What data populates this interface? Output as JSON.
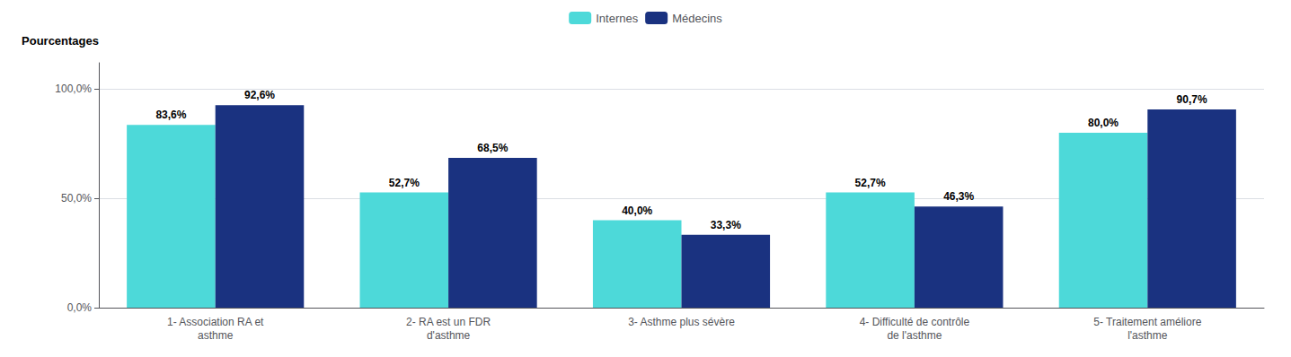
{
  "chart_data": {
    "type": "bar",
    "ylabel": "Pourcentages",
    "categories": [
      "1- Association RA et\nasthme",
      "2- RA est un FDR\nd'asthme",
      "3- Asthme plus sévère",
      "4- Difficulté de contrôle\nde l'asthme",
      "5- Traitement améliore\nl'asthme"
    ],
    "series": [
      {
        "name": "Internes",
        "color": "#4DD9D9",
        "values": [
          83.6,
          52.7,
          40.0,
          52.7,
          80.0
        ],
        "value_labels": [
          "83,6%",
          "52,7%",
          "40,0%",
          "52,7%",
          "80,0%"
        ]
      },
      {
        "name": "Médecins",
        "color": "#1A3280",
        "values": [
          92.6,
          68.5,
          33.3,
          46.3,
          90.7
        ],
        "value_labels": [
          "92,6%",
          "68,5%",
          "33,3%",
          "46,3%",
          "90,7%"
        ]
      }
    ],
    "ylim": [
      0,
      112
    ],
    "yticks": [
      {
        "value": 0,
        "label": "0,0%"
      },
      {
        "value": 50,
        "label": "50,0%"
      },
      {
        "value": 100,
        "label": "100,0%"
      }
    ],
    "grid": true,
    "legend": "top",
    "data_labels": true
  }
}
